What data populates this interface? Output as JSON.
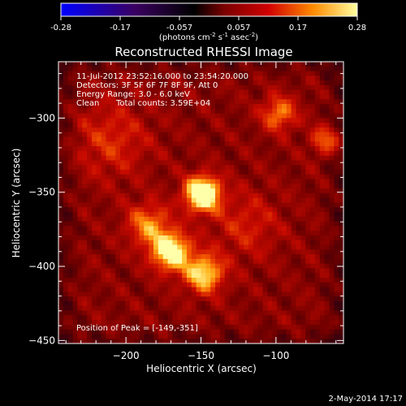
{
  "chart_data": {
    "type": "heatmap",
    "title": "Reconstructed RHESSI Image",
    "xlabel": "Heliocentric X (arcsec)",
    "ylabel": "Heliocentric Y (arcsec)",
    "xlim": [
      -245,
      -55
    ],
    "ylim": [
      -452,
      -262
    ],
    "xticks": [
      -200,
      -150,
      -100
    ],
    "yticks": [
      -300,
      -350,
      -400,
      -450
    ],
    "colorbar": {
      "range": [
        -0.28,
        0.28
      ],
      "ticks": [
        "-0.28",
        "-0.17",
        "-0.057",
        "0.057",
        "0.17",
        "0.28"
      ],
      "unit_prefix": "(photons cm",
      "unit_sup1": "-2",
      "unit_mid": " s",
      "unit_sup2": "-1",
      "unit_end": " asec",
      "unit_sup3": "-2",
      "unit_close": ")",
      "colormap": "fire"
    },
    "annotations": {
      "time_range": "11-Jul-2012 23:52:16.000 to 23:54:20.000",
      "detectors": "Detectors: 3F 5F 6F 7F 8F 9F, Att 0",
      "energy": "Energy Range: 3.0 - 6.0 keV",
      "clean_label": "Clean",
      "total_counts": "Total counts: 3.59E+04",
      "peak_position": "Position of Peak = [-149,-351]"
    },
    "sources": [
      {
        "x": -149,
        "y": -351,
        "sigma": 8,
        "amp": 1.0
      },
      {
        "x": -170,
        "y": -390,
        "sigma": 9,
        "amp": 0.8
      },
      {
        "x": -148,
        "y": -405,
        "sigma": 9,
        "amp": 0.65
      },
      {
        "x": -185,
        "y": -372,
        "sigma": 10,
        "amp": 0.45
      },
      {
        "x": -98,
        "y": -297,
        "sigma": 8,
        "amp": 0.45
      },
      {
        "x": -66,
        "y": -315,
        "sigma": 7,
        "amp": 0.4
      },
      {
        "x": -210,
        "y": -315,
        "sigma": 18,
        "amp": 0.25
      },
      {
        "x": -120,
        "y": -372,
        "sigma": 16,
        "amp": 0.22
      }
    ],
    "background_level": 0.32
  },
  "footer": {
    "date": "2-May-2014 17:17"
  }
}
